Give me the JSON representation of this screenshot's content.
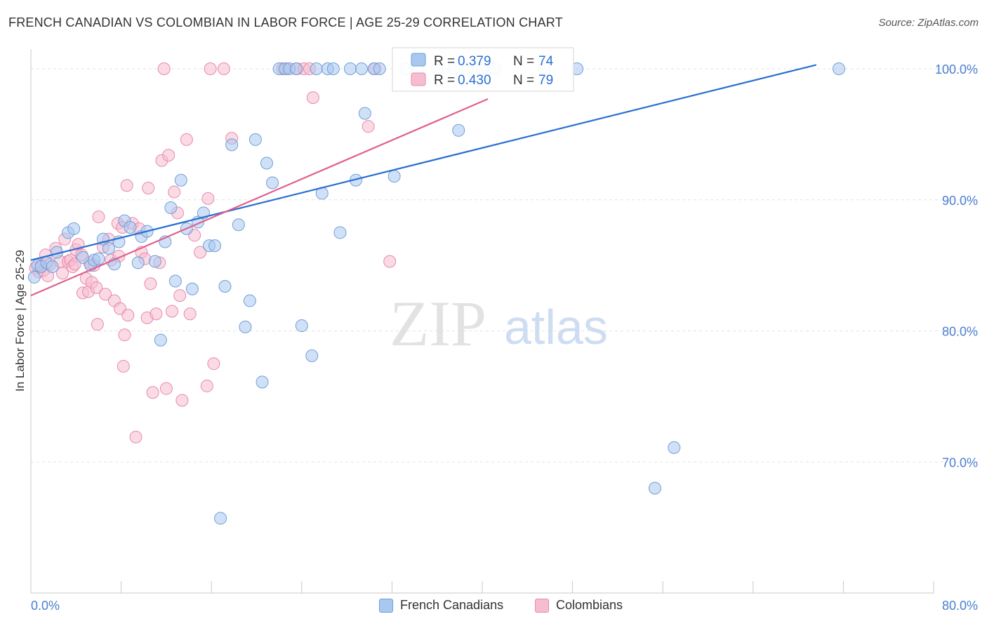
{
  "title": "FRENCH CANADIAN VS COLOMBIAN IN LABOR FORCE | AGE 25-29 CORRELATION CHART",
  "source": "Source: ZipAtlas.com",
  "watermark": {
    "zip": "ZIP",
    "atlas": "atlas"
  },
  "colors": {
    "blue_fill": "#a9c8f0",
    "blue_stroke": "#6f9fd8",
    "blue_line": "#2a6fd0",
    "pink_fill": "#f6bcd0",
    "pink_stroke": "#e88aab",
    "pink_line": "#e0608c",
    "tick_text": "#4a7ecf",
    "grid": "#e3e3e3"
  },
  "legend_top": {
    "rows": [
      {
        "r_label": "R =",
        "r_value": "0.379",
        "n_label": "N =",
        "n_value": "74"
      },
      {
        "r_label": "R =",
        "r_value": "0.430",
        "n_label": "N =",
        "n_value": "79"
      }
    ]
  },
  "legend_bottom": {
    "items": [
      "French Canadians",
      "Colombians"
    ]
  },
  "chart_data": {
    "type": "scatter",
    "title": "FRENCH CANADIAN VS COLOMBIAN IN LABOR FORCE | AGE 25-29 CORRELATION CHART",
    "xlabel": "",
    "ylabel": "In Labor Force | Age 25-29",
    "xlim": [
      0,
      80
    ],
    "ylim": [
      60,
      101.5
    ],
    "x_tick_labels": [
      "0.0%",
      "80.0%"
    ],
    "y_ticks": [
      70,
      80,
      90,
      100
    ],
    "y_tick_labels": [
      "70.0%",
      "80.0%",
      "90.0%",
      "100.0%"
    ],
    "grid": true,
    "legend_position": "top-center",
    "series": [
      {
        "name": "French Canadians",
        "r": 0.379,
        "n": 74,
        "trend": {
          "x": [
            0,
            69.6
          ],
          "y": [
            85.4,
            100.3
          ]
        },
        "points": [
          [
            0.3,
            84.1
          ],
          [
            0.6,
            85.0
          ],
          [
            0.9,
            84.9
          ],
          [
            1.4,
            85.2
          ],
          [
            1.9,
            84.9
          ],
          [
            2.3,
            86.0
          ],
          [
            3.3,
            87.5
          ],
          [
            3.8,
            87.8
          ],
          [
            4.6,
            85.6
          ],
          [
            5.3,
            85.0
          ],
          [
            5.6,
            85.4
          ],
          [
            6.0,
            85.5
          ],
          [
            6.4,
            87.0
          ],
          [
            6.9,
            86.3
          ],
          [
            7.4,
            85.1
          ],
          [
            7.8,
            86.8
          ],
          [
            8.3,
            88.4
          ],
          [
            8.8,
            87.9
          ],
          [
            9.5,
            85.2
          ],
          [
            9.8,
            87.2
          ],
          [
            10.3,
            87.6
          ],
          [
            11.0,
            85.3
          ],
          [
            11.5,
            79.3
          ],
          [
            11.9,
            86.8
          ],
          [
            12.4,
            89.4
          ],
          [
            12.8,
            83.8
          ],
          [
            13.3,
            91.5
          ],
          [
            13.8,
            87.8
          ],
          [
            14.3,
            83.2
          ],
          [
            14.8,
            88.3
          ],
          [
            15.3,
            89.0
          ],
          [
            15.8,
            86.5
          ],
          [
            16.3,
            86.5
          ],
          [
            16.8,
            65.7
          ],
          [
            17.2,
            83.4
          ],
          [
            17.8,
            94.2
          ],
          [
            18.4,
            88.1
          ],
          [
            19.0,
            80.3
          ],
          [
            19.4,
            82.3
          ],
          [
            19.9,
            94.6
          ],
          [
            20.5,
            76.1
          ],
          [
            20.9,
            92.8
          ],
          [
            21.4,
            91.3
          ],
          [
            22.0,
            100.0
          ],
          [
            22.5,
            100.0
          ],
          [
            22.9,
            100.0
          ],
          [
            23.5,
            100.0
          ],
          [
            24.0,
            80.4
          ],
          [
            24.9,
            78.1
          ],
          [
            25.3,
            100.0
          ],
          [
            25.8,
            90.5
          ],
          [
            26.3,
            100.0
          ],
          [
            26.8,
            100.0
          ],
          [
            27.4,
            87.5
          ],
          [
            28.3,
            100.0
          ],
          [
            28.8,
            91.5
          ],
          [
            29.3,
            100.0
          ],
          [
            29.6,
            96.6
          ],
          [
            30.4,
            100.0
          ],
          [
            30.9,
            100.0
          ],
          [
            32.2,
            91.8
          ],
          [
            33.2,
            100.0
          ],
          [
            34.3,
            100.0
          ],
          [
            36.0,
            100.0
          ],
          [
            37.5,
            100.0
          ],
          [
            37.9,
            95.3
          ],
          [
            38.7,
            100.0
          ],
          [
            40.0,
            100.0
          ],
          [
            41.1,
            100.0
          ],
          [
            45.5,
            100.0
          ],
          [
            48.4,
            100.0
          ],
          [
            55.3,
            68.0
          ],
          [
            57.0,
            71.1
          ],
          [
            71.6,
            100.0
          ]
        ]
      },
      {
        "name": "Colombians",
        "r": 0.43,
        "n": 79,
        "trend": {
          "x": [
            0,
            40.5
          ],
          "y": [
            82.7,
            97.7
          ]
        },
        "points": [
          [
            0.4,
            84.8
          ],
          [
            0.7,
            84.5
          ],
          [
            0.9,
            85.0
          ],
          [
            1.1,
            84.6
          ],
          [
            1.3,
            85.8
          ],
          [
            1.5,
            84.2
          ],
          [
            1.7,
            85.1
          ],
          [
            2.2,
            86.3
          ],
          [
            2.6,
            85.3
          ],
          [
            2.8,
            84.4
          ],
          [
            3.0,
            87.0
          ],
          [
            3.3,
            85.3
          ],
          [
            3.5,
            85.4
          ],
          [
            3.7,
            84.9
          ],
          [
            3.9,
            85.1
          ],
          [
            4.0,
            86.2
          ],
          [
            4.2,
            86.6
          ],
          [
            4.5,
            85.8
          ],
          [
            4.6,
            82.9
          ],
          [
            4.9,
            84.0
          ],
          [
            5.1,
            83.0
          ],
          [
            5.2,
            85.2
          ],
          [
            5.4,
            83.7
          ],
          [
            5.6,
            85.0
          ],
          [
            5.8,
            83.3
          ],
          [
            5.9,
            80.5
          ],
          [
            6.0,
            88.7
          ],
          [
            6.4,
            86.4
          ],
          [
            6.6,
            82.8
          ],
          [
            6.9,
            87.0
          ],
          [
            7.1,
            85.4
          ],
          [
            7.4,
            82.3
          ],
          [
            7.7,
            88.2
          ],
          [
            7.8,
            85.7
          ],
          [
            7.9,
            81.7
          ],
          [
            8.1,
            87.9
          ],
          [
            8.2,
            77.3
          ],
          [
            8.3,
            79.7
          ],
          [
            8.5,
            91.1
          ],
          [
            8.6,
            81.2
          ],
          [
            9.0,
            88.2
          ],
          [
            9.3,
            71.9
          ],
          [
            9.6,
            87.8
          ],
          [
            9.8,
            86.0
          ],
          [
            10.1,
            85.5
          ],
          [
            10.3,
            81.0
          ],
          [
            10.4,
            90.9
          ],
          [
            10.6,
            83.6
          ],
          [
            10.8,
            75.3
          ],
          [
            11.1,
            81.3
          ],
          [
            11.4,
            85.2
          ],
          [
            11.6,
            93.0
          ],
          [
            11.8,
            100.0
          ],
          [
            12.0,
            75.6
          ],
          [
            12.2,
            93.4
          ],
          [
            12.5,
            81.5
          ],
          [
            12.7,
            90.6
          ],
          [
            13.0,
            89.0
          ],
          [
            13.2,
            82.7
          ],
          [
            13.4,
            74.7
          ],
          [
            13.8,
            94.6
          ],
          [
            14.1,
            81.3
          ],
          [
            14.5,
            87.3
          ],
          [
            15.0,
            86.0
          ],
          [
            15.6,
            75.8
          ],
          [
            15.7,
            90.1
          ],
          [
            15.9,
            100.0
          ],
          [
            16.2,
            77.5
          ],
          [
            17.1,
            100.0
          ],
          [
            17.8,
            94.7
          ],
          [
            22.3,
            100.0
          ],
          [
            22.6,
            100.0
          ],
          [
            23.6,
            100.0
          ],
          [
            24.2,
            100.0
          ],
          [
            24.7,
            100.0
          ],
          [
            25.0,
            97.8
          ],
          [
            29.9,
            95.6
          ],
          [
            30.5,
            100.0
          ],
          [
            31.8,
            85.3
          ]
        ]
      }
    ]
  }
}
